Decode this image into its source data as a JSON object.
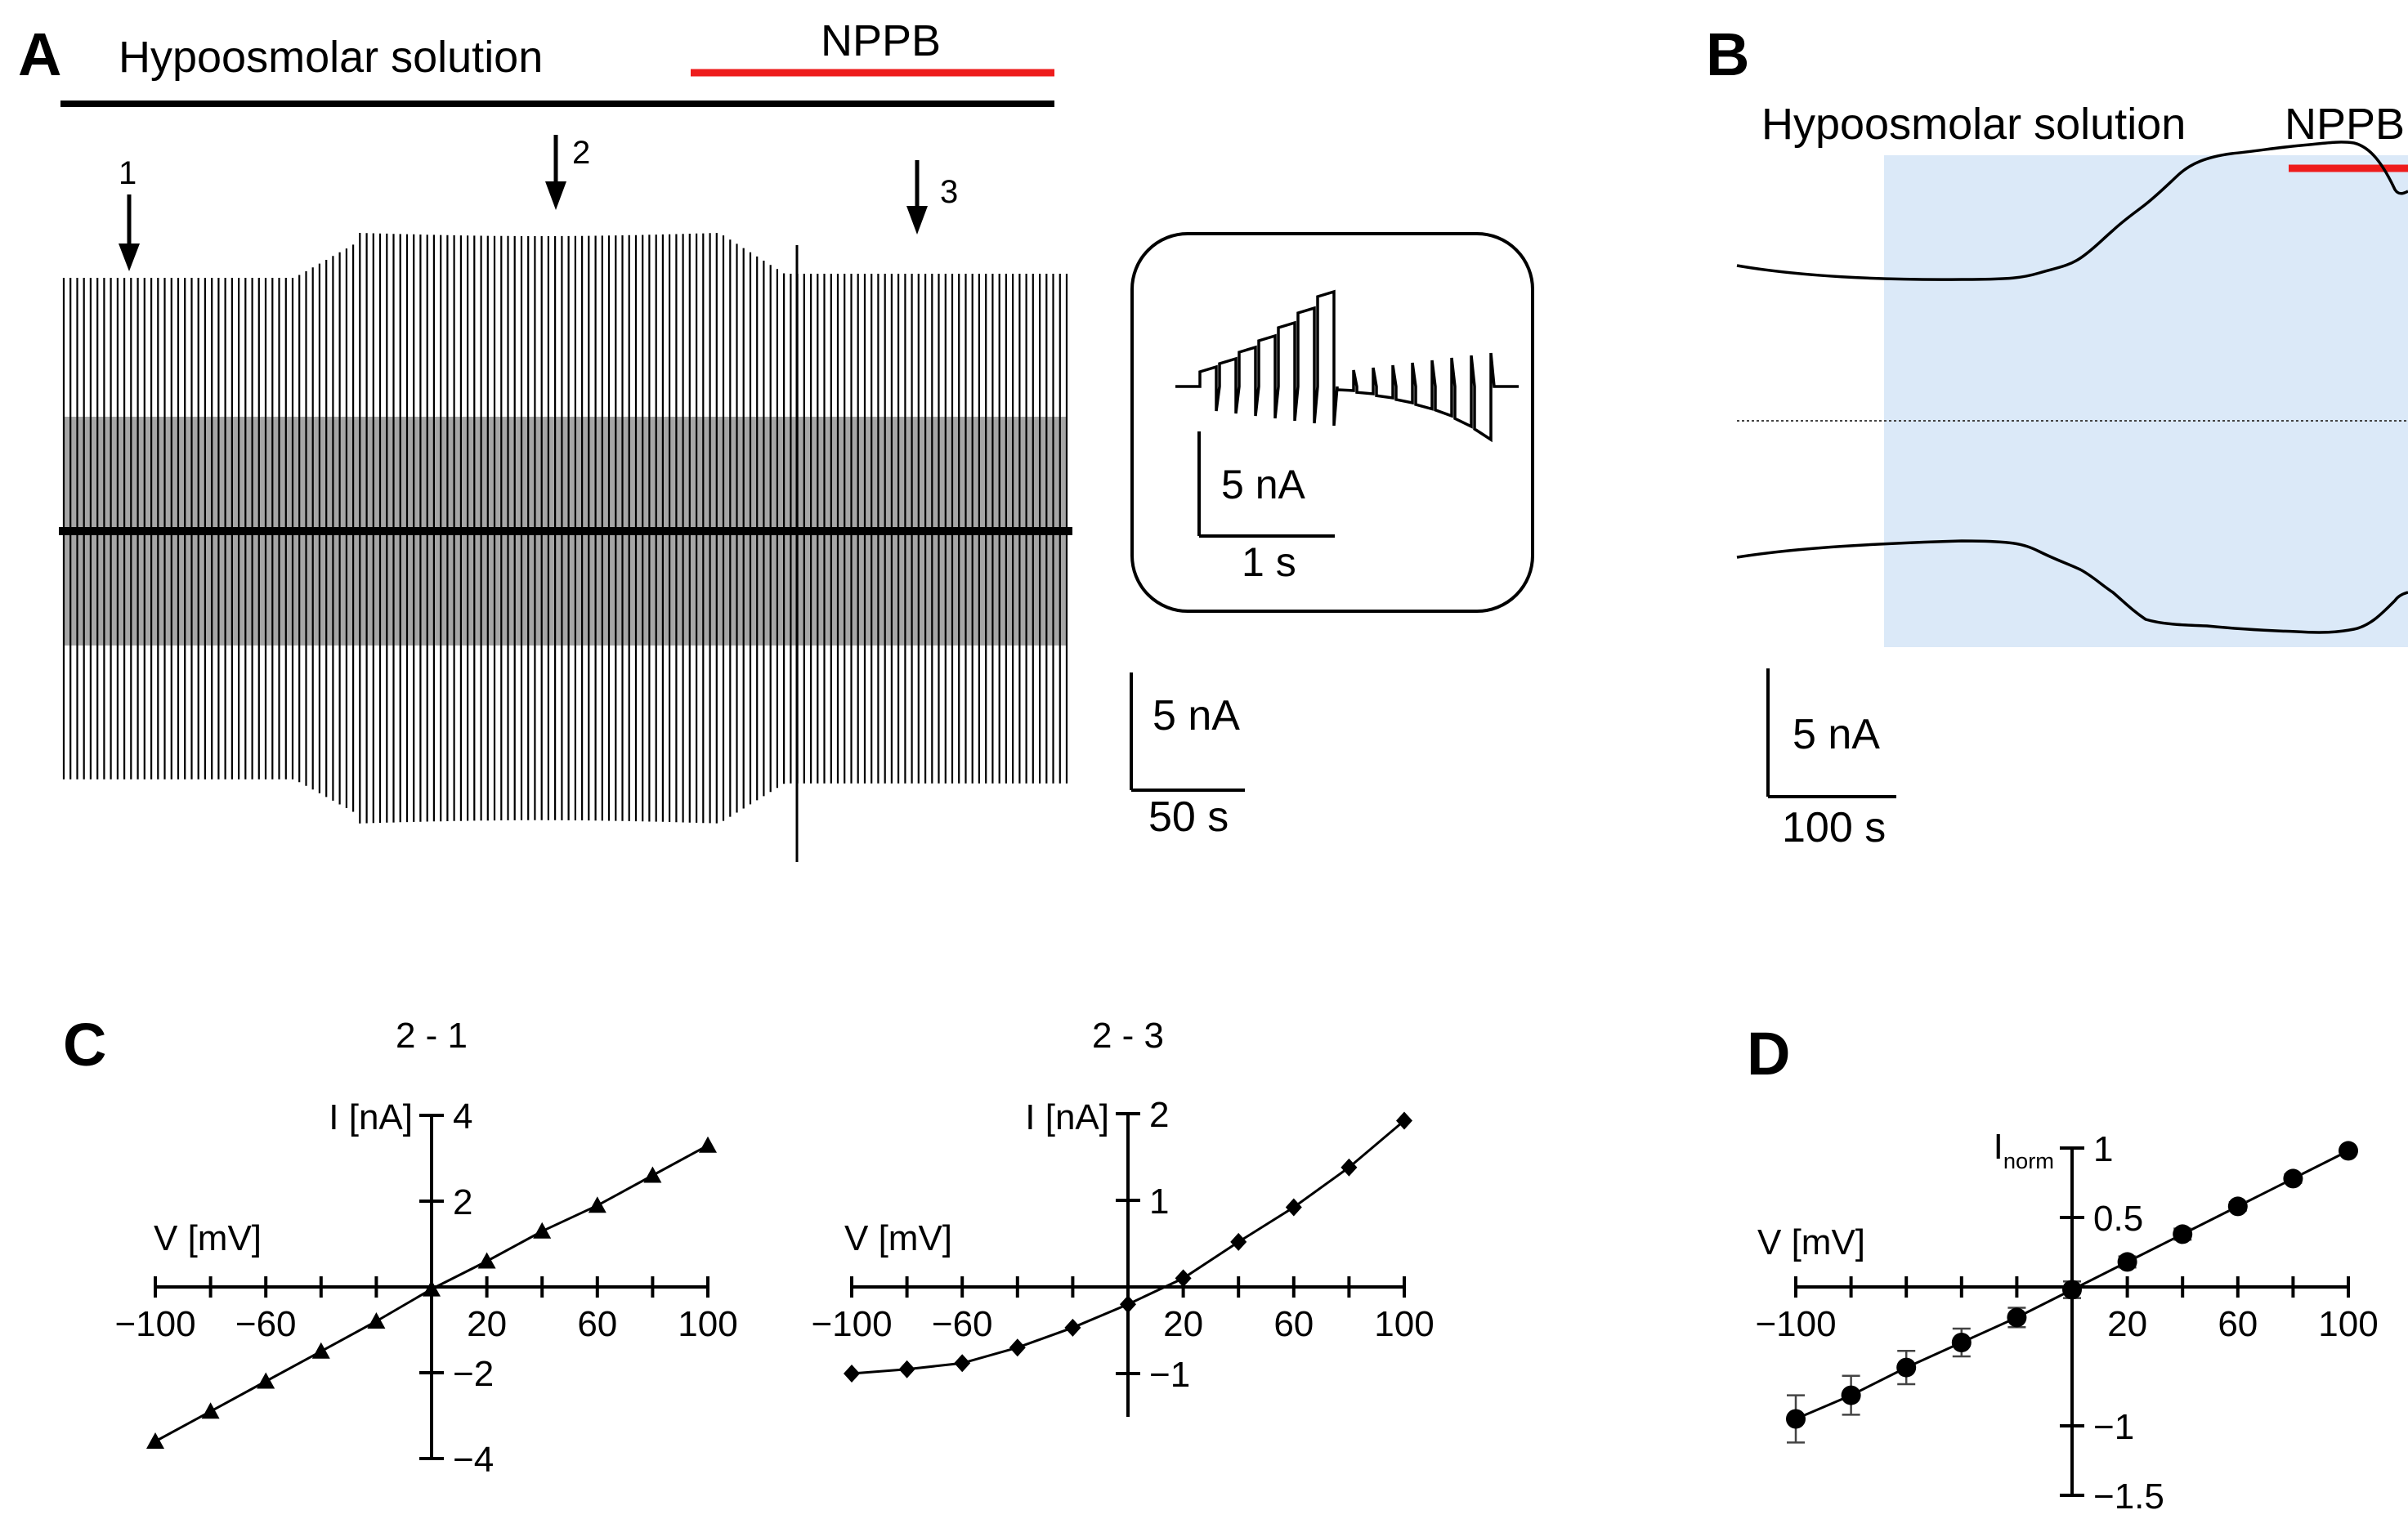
{
  "colors": {
    "nppb_bar": "#ee1c1c",
    "shade": "#dbe9f8",
    "trace": "#000000"
  },
  "panel_a": {
    "letter": "A",
    "solution_label": "Hypoosmolar solution",
    "drug_label": "NPPB",
    "arrows": [
      "1",
      "2",
      "3"
    ],
    "inset_scale_current": "5 nA",
    "inset_scale_time": "1 s",
    "scale_current": "5 nA",
    "scale_time": "50 s"
  },
  "panel_b": {
    "letter": "B",
    "solution_label": "Hypoosmolar solution",
    "drug_label": "NPPB",
    "scale_current": "5 nA",
    "scale_time": "100 s"
  },
  "panel_c": {
    "letter": "C"
  },
  "panel_d": {
    "letter": "D"
  },
  "chart_data": [
    {
      "type": "line",
      "id": "C1",
      "title": "2 - 1",
      "xlabel": "V [mV]",
      "ylabel": "I [nA]",
      "marker": "triangle",
      "xlim": [
        -100,
        100
      ],
      "ylim": [
        -4,
        4
      ],
      "xticks": [
        -100,
        -80,
        -60,
        -40,
        -20,
        0,
        20,
        40,
        60,
        80,
        100
      ],
      "xtick_labels": [
        "−100",
        "−60",
        "20",
        "60",
        "100"
      ],
      "xtick_label_values": [
        -100,
        -60,
        20,
        60,
        100
      ],
      "yticks": [
        -4,
        -2,
        2,
        4
      ],
      "ytick_labels": [
        "−4",
        "−2",
        "2",
        "4"
      ],
      "x": [
        -100,
        -80,
        -60,
        -40,
        -20,
        0,
        20,
        40,
        60,
        80,
        100
      ],
      "y": [
        -3.6,
        -2.9,
        -2.2,
        -1.5,
        -0.8,
        -0.05,
        0.6,
        1.3,
        1.9,
        2.6,
        3.3
      ]
    },
    {
      "type": "line",
      "id": "C2",
      "title": "2 - 3",
      "xlabel": "V [mV]",
      "ylabel": "I [nA]",
      "marker": "diamond",
      "xlim": [
        -100,
        100
      ],
      "ylim": [
        -1.5,
        2
      ],
      "xticks": [
        -100,
        -80,
        -60,
        -40,
        -20,
        0,
        20,
        40,
        60,
        80,
        100
      ],
      "xtick_labels": [
        "−100",
        "−60",
        "20",
        "60",
        "100"
      ],
      "xtick_label_values": [
        -100,
        -60,
        20,
        60,
        100
      ],
      "yticks": [
        -1,
        1,
        2
      ],
      "ytick_labels": [
        "−1",
        "1",
        "2"
      ],
      "x": [
        -100,
        -80,
        -60,
        -40,
        -20,
        0,
        20,
        40,
        60,
        80,
        100
      ],
      "y": [
        -1.0,
        -0.95,
        -0.88,
        -0.7,
        -0.47,
        -0.2,
        0.1,
        0.52,
        0.92,
        1.38,
        1.92
      ]
    },
    {
      "type": "line",
      "id": "D",
      "xlabel": "V [mV]",
      "ylabel": "I",
      "ylabel_sub": "norm",
      "marker": "circle",
      "error_bars": true,
      "xlim": [
        -100,
        100
      ],
      "ylim": [
        -1.5,
        1
      ],
      "xticks": [
        -100,
        -80,
        -60,
        -40,
        -20,
        0,
        20,
        40,
        60,
        80,
        100
      ],
      "xtick_labels": [
        "−100",
        "20",
        "60",
        "100"
      ],
      "xtick_label_values": [
        -100,
        20,
        60,
        100
      ],
      "yticks": [
        -1.5,
        -1,
        0.5,
        1
      ],
      "ytick_labels": [
        "−1.5",
        "−1",
        "0.5",
        "1"
      ],
      "x": [
        -100,
        -80,
        -60,
        -40,
        -20,
        0,
        20,
        40,
        60,
        80,
        100
      ],
      "y": [
        -0.95,
        -0.78,
        -0.58,
        -0.4,
        -0.22,
        -0.02,
        0.18,
        0.38,
        0.58,
        0.78,
        0.98
      ],
      "err": [
        0.17,
        0.14,
        0.12,
        0.1,
        0.07,
        0.06,
        0.04,
        0.04,
        0.03,
        0.03,
        0.02
      ]
    }
  ]
}
